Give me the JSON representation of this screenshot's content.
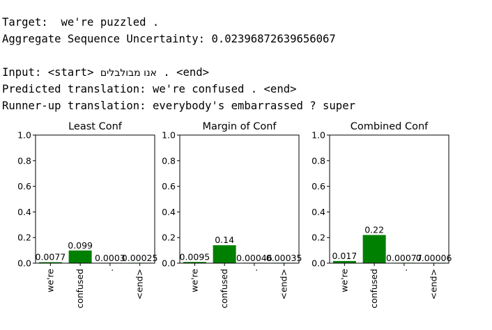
{
  "header": {
    "target_label": "Target:",
    "target_text": "we're puzzled .",
    "uncertainty_label": "Aggregate Sequence Uncertainty:",
    "uncertainty_value": "0.02396872639656067",
    "input_label": "Input:",
    "input_start": "<start>",
    "input_hebrew": "אנו מבולבלים",
    "input_end": ". <end>",
    "predicted_label": "Predicted translation:",
    "predicted_text": "we're confused . <end>",
    "runnerup_label": "Runner-up translation:",
    "runnerup_text": "everybody's embarrassed ? super"
  },
  "colors": {
    "bar": "#008000",
    "axis": "#000000",
    "text": "#000000"
  },
  "chart_data": [
    {
      "type": "bar",
      "title": "Least Conf",
      "categories": [
        "we're",
        "confused",
        ".",
        "<end>"
      ],
      "values": [
        0.0077,
        0.099,
        0.0003,
        0.00025
      ],
      "data_labels": [
        "0.0077",
        "0.099",
        "0.0003",
        "0.00025"
      ],
      "ylim": [
        0,
        1.0
      ],
      "yticks": [
        "0.0",
        "0.2",
        "0.4",
        "0.6",
        "0.8",
        "1.0"
      ],
      "grid": false
    },
    {
      "type": "bar",
      "title": "Margin of Conf",
      "categories": [
        "we're",
        "confused",
        ".",
        "<end>"
      ],
      "values": [
        0.0095,
        0.14,
        0.00046,
        0.00035
      ],
      "data_labels": [
        "0.0095",
        "0.14",
        "0.00046",
        "0.00035"
      ],
      "ylim": [
        0,
        1.0
      ],
      "yticks": [
        "0.0",
        "0.2",
        "0.4",
        "0.6",
        "0.8",
        "1.0"
      ],
      "grid": false
    },
    {
      "type": "bar",
      "title": "Combined Conf",
      "categories": [
        "we're",
        "confused",
        ".",
        "<end>"
      ],
      "values": [
        0.017,
        0.22,
        0.00077,
        6e-05
      ],
      "data_labels": [
        "0.017",
        "0.22",
        "0.00077",
        "0.00006"
      ],
      "ylim": [
        0,
        1.0
      ],
      "yticks": [
        "0.0",
        "0.2",
        "0.4",
        "0.6",
        "0.8",
        "1.0"
      ],
      "grid": false
    }
  ]
}
